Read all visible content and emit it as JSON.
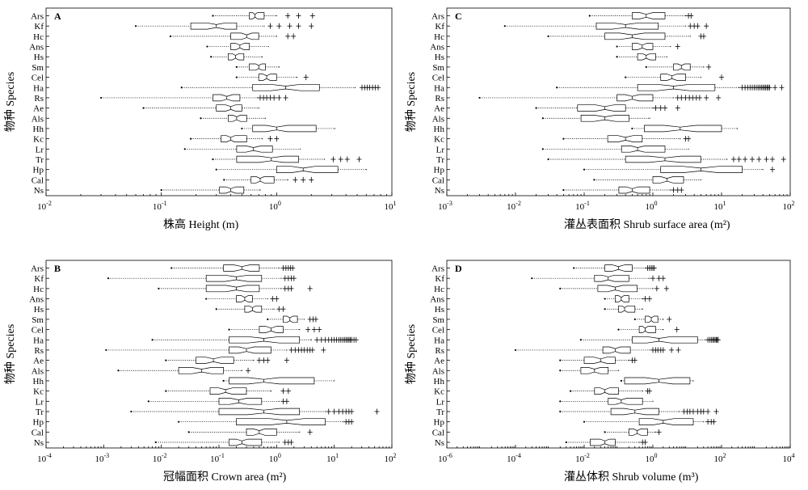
{
  "chart_data": [
    {
      "type": "boxplot",
      "panel": "A",
      "xlabel": "株高 Height (m)",
      "ylabel": "物种 Species",
      "xscale": "log",
      "xlim": [
        0.01,
        10
      ],
      "xticks": [
        {
          "v": 0.01,
          "b": "10",
          "e": "-2"
        },
        {
          "v": 0.1,
          "b": "10",
          "e": "-1"
        },
        {
          "v": 1,
          "b": "10",
          "e": "0"
        },
        {
          "v": 10,
          "b": "10",
          "e": "1"
        }
      ],
      "categories": [
        "Ars",
        "Kf",
        "Hc",
        "Ans",
        "Hs",
        "Sm",
        "Cel",
        "Ha",
        "Rs",
        "Ae",
        "Als",
        "Hh",
        "Kc",
        "Lr",
        "Tr",
        "Hp",
        "Cal",
        "Ns"
      ],
      "boxes": [
        {
          "min": 0.28,
          "q1": 0.58,
          "med": 0.65,
          "q3": 0.78,
          "max": 1.0,
          "out": [
            1.25,
            1.55,
            2.05
          ]
        },
        {
          "min": 0.06,
          "q1": 0.18,
          "med": 0.3,
          "q3": 0.45,
          "max": 0.78,
          "out": [
            0.88,
            1.05,
            1.3,
            1.55,
            2.0
          ]
        },
        {
          "min": 0.12,
          "q1": 0.4,
          "med": 0.55,
          "q3": 0.7,
          "max": 1.0,
          "out": [
            1.25,
            1.4
          ]
        },
        {
          "min": 0.25,
          "q1": 0.4,
          "med": 0.48,
          "q3": 0.58,
          "max": 0.85,
          "out": []
        },
        {
          "min": 0.27,
          "q1": 0.38,
          "med": 0.44,
          "q3": 0.52,
          "max": 0.75,
          "out": []
        },
        {
          "min": 0.45,
          "q1": 0.58,
          "med": 0.7,
          "q3": 0.8,
          "max": 1.05,
          "out": []
        },
        {
          "min": 0.45,
          "q1": 0.7,
          "med": 0.82,
          "q3": 1.0,
          "max": 1.5,
          "out": [
            1.8
          ]
        },
        {
          "min": 0.15,
          "q1": 0.62,
          "med": 1.2,
          "q3": 2.35,
          "max": 4.8,
          "out": [
            5.5,
            5.8,
            6.1,
            6.4,
            6.8,
            7.2,
            7.6
          ]
        },
        {
          "min": 0.03,
          "q1": 0.28,
          "med": 0.37,
          "q3": 0.48,
          "max": 0.68,
          "out": [
            0.72,
            0.77,
            0.82,
            0.88,
            0.95,
            1.05,
            1.2
          ]
        },
        {
          "min": 0.07,
          "q1": 0.3,
          "med": 0.4,
          "q3": 0.5,
          "max": 0.7,
          "out": []
        },
        {
          "min": 0.22,
          "q1": 0.38,
          "med": 0.45,
          "q3": 0.55,
          "max": 0.8,
          "out": []
        },
        {
          "min": 0.5,
          "q1": 0.62,
          "med": 1.0,
          "q3": 2.2,
          "max": 3.2,
          "out": []
        },
        {
          "min": 0.18,
          "q1": 0.33,
          "med": 0.4,
          "q3": 0.55,
          "max": 0.75,
          "out": [
            0.88,
            1.0
          ]
        },
        {
          "min": 0.16,
          "q1": 0.45,
          "med": 0.63,
          "q3": 0.92,
          "max": 1.6,
          "out": []
        },
        {
          "min": 0.28,
          "q1": 0.45,
          "med": 0.9,
          "q3": 1.55,
          "max": 2.6,
          "out": [
            3.1,
            3.6,
            4.1,
            5.2
          ]
        },
        {
          "min": 0.3,
          "q1": 1.0,
          "med": 1.7,
          "q3": 3.4,
          "max": 6.0,
          "out": []
        },
        {
          "min": 0.35,
          "q1": 0.6,
          "med": 0.72,
          "q3": 0.95,
          "max": 1.25,
          "out": [
            1.45,
            1.7,
            2.0
          ]
        },
        {
          "min": 0.1,
          "q1": 0.32,
          "med": 0.4,
          "q3": 0.52,
          "max": 0.72,
          "out": []
        }
      ]
    },
    {
      "type": "boxplot",
      "panel": "B",
      "xlabel": "冠幅面积 Crown area (m²)",
      "ylabel": "物种 Species",
      "xscale": "log",
      "xlim": [
        0.0001,
        100
      ],
      "xticks": [
        {
          "v": 0.0001,
          "b": "10",
          "e": "-4"
        },
        {
          "v": 0.001,
          "b": "10",
          "e": "-3"
        },
        {
          "v": 0.01,
          "b": "10",
          "e": "-2"
        },
        {
          "v": 0.1,
          "b": "10",
          "e": "-1"
        },
        {
          "v": 1,
          "b": "10",
          "e": "0"
        },
        {
          "v": 10,
          "b": "10",
          "e": "1"
        },
        {
          "v": 100,
          "b": "10",
          "e": "2"
        }
      ],
      "categories": [
        "Ars",
        "Kf",
        "Hc",
        "Ans",
        "Hs",
        "Sm",
        "Cel",
        "Ha",
        "Rs",
        "Ae",
        "Als",
        "Hh",
        "Kc",
        "Lr",
        "Tr",
        "Hp",
        "Cal",
        "Ns"
      ],
      "boxes": [
        {
          "min": 0.015,
          "q1": 0.12,
          "med": 0.25,
          "q3": 0.5,
          "max": 1.1,
          "out": [
            1.3,
            1.45,
            1.6,
            1.75,
            1.9
          ]
        },
        {
          "min": 0.0012,
          "q1": 0.06,
          "med": 0.2,
          "q3": 0.55,
          "max": 1.2,
          "out": [
            1.4,
            1.6,
            1.8,
            2.0
          ]
        },
        {
          "min": 0.009,
          "q1": 0.06,
          "med": 0.2,
          "q3": 0.5,
          "max": 1.2,
          "out": [
            1.4,
            1.6,
            1.8,
            3.8
          ]
        },
        {
          "min": 0.06,
          "q1": 0.2,
          "med": 0.28,
          "q3": 0.38,
          "max": 0.7,
          "out": [
            0.85,
            1.0
          ]
        },
        {
          "min": 0.09,
          "q1": 0.28,
          "med": 0.38,
          "q3": 0.55,
          "max": 0.9,
          "out": [
            1.1,
            1.3
          ]
        },
        {
          "min": 0.7,
          "q1": 1.3,
          "med": 1.7,
          "q3": 2.3,
          "max": 3.0,
          "out": [
            3.8,
            4.3,
            4.8
          ]
        },
        {
          "min": 0.15,
          "q1": 0.5,
          "med": 0.8,
          "q3": 1.3,
          "max": 2.5,
          "out": [
            3.5,
            4.5,
            5.5
          ]
        },
        {
          "min": 0.007,
          "q1": 0.15,
          "med": 0.6,
          "q3": 2.5,
          "max": 4.0,
          "out": [
            5,
            6,
            7,
            8,
            9,
            10,
            11,
            12,
            13,
            14,
            15,
            16,
            17,
            18,
            19,
            20,
            22,
            24
          ]
        },
        {
          "min": 0.0011,
          "q1": 0.15,
          "med": 0.3,
          "q3": 0.8,
          "max": 1.5,
          "out": [
            1.8,
            2.1,
            2.4,
            2.7,
            3.0,
            3.4,
            3.8,
            4.2,
            6.5
          ]
        },
        {
          "min": 0.012,
          "q1": 0.04,
          "med": 0.08,
          "q3": 0.18,
          "max": 0.4,
          "out": [
            0.5,
            0.6,
            0.7,
            1.5
          ]
        },
        {
          "min": 0.0018,
          "q1": 0.02,
          "med": 0.05,
          "q3": 0.12,
          "max": 0.25,
          "out": [
            0.32
          ]
        },
        {
          "min": 0.12,
          "q1": 0.15,
          "med": 0.6,
          "q3": 4.5,
          "max": 10,
          "out": []
        },
        {
          "min": 0.012,
          "q1": 0.07,
          "med": 0.13,
          "q3": 0.3,
          "max": 0.8,
          "out": [
            1.3,
            1.6
          ]
        },
        {
          "min": 0.006,
          "q1": 0.1,
          "med": 0.22,
          "q3": 0.55,
          "max": 1.1,
          "out": [
            1.3,
            1.5
          ]
        },
        {
          "min": 0.003,
          "q1": 0.1,
          "med": 0.6,
          "q3": 2.5,
          "max": 7.0,
          "out": [
            8,
            10,
            12,
            14,
            16,
            18,
            20,
            55
          ]
        },
        {
          "min": 0.02,
          "q1": 0.2,
          "med": 1.5,
          "q3": 7.0,
          "max": 14,
          "out": [
            16,
            18,
            20
          ]
        },
        {
          "min": 0.03,
          "q1": 0.3,
          "med": 0.5,
          "q3": 1.0,
          "max": 2.5,
          "out": [
            3.8
          ]
        },
        {
          "min": 0.008,
          "q1": 0.15,
          "med": 0.25,
          "q3": 0.55,
          "max": 1.1,
          "out": [
            1.4,
            1.6,
            1.8
          ]
        }
      ]
    },
    {
      "type": "boxplot",
      "panel": "C",
      "xlabel": "灌丛表面积 Shrub surface area (m²)",
      "ylabel": "物种 Species",
      "xscale": "log",
      "xlim": [
        0.001,
        100
      ],
      "xticks": [
        {
          "v": 0.001,
          "b": "10",
          "e": "-3"
        },
        {
          "v": 0.01,
          "b": "10",
          "e": "-2"
        },
        {
          "v": 0.1,
          "b": "10",
          "e": "-1"
        },
        {
          "v": 1,
          "b": "10",
          "e": "0"
        },
        {
          "v": 10,
          "b": "10",
          "e": "1"
        },
        {
          "v": 100,
          "b": "10",
          "e": "2"
        }
      ],
      "categories": [
        "Ars",
        "Kf",
        "Hc",
        "Ans",
        "Hs",
        "Sm",
        "Cel",
        "Ha",
        "Rs",
        "Ae",
        "Als",
        "Hh",
        "Kc",
        "Lr",
        "Tr",
        "Hp",
        "Cal",
        "Ns"
      ],
      "boxes": [
        {
          "min": 0.12,
          "q1": 0.5,
          "med": 0.8,
          "q3": 1.5,
          "max": 3.0,
          "out": [
            3.3,
            3.6
          ]
        },
        {
          "min": 0.007,
          "q1": 0.15,
          "med": 0.4,
          "q3": 1.2,
          "max": 3.0,
          "out": [
            3.5,
            4.0,
            4.5,
            6.0
          ]
        },
        {
          "min": 0.03,
          "q1": 0.2,
          "med": 0.5,
          "q3": 1.5,
          "max": 3.5,
          "out": [
            5.0,
            5.5
          ]
        },
        {
          "min": 0.3,
          "q1": 0.5,
          "med": 0.7,
          "q3": 1.0,
          "max": 1.8,
          "out": [
            2.3
          ]
        },
        {
          "min": 0.3,
          "q1": 0.6,
          "med": 0.8,
          "q3": 1.1,
          "max": 1.6,
          "out": []
        },
        {
          "min": 0.8,
          "q1": 2.0,
          "med": 2.6,
          "q3": 3.5,
          "max": 5.5,
          "out": [
            6.5
          ]
        },
        {
          "min": 0.4,
          "q1": 1.3,
          "med": 1.9,
          "q3": 3.0,
          "max": 5.0,
          "out": [
            10
          ]
        },
        {
          "min": 0.04,
          "q1": 0.6,
          "med": 2.0,
          "q3": 8.0,
          "max": 18,
          "out": [
            20,
            22,
            24,
            26,
            28,
            30,
            32,
            34,
            36,
            38,
            40,
            42,
            44,
            46,
            48,
            50,
            60,
            75
          ]
        },
        {
          "min": 0.003,
          "q1": 0.3,
          "med": 0.5,
          "q3": 1.0,
          "max": 2.0,
          "out": [
            2.3,
            2.6,
            3.0,
            3.4,
            3.8,
            4.3,
            4.8,
            6.0,
            9.0
          ]
        },
        {
          "min": 0.02,
          "q1": 0.08,
          "med": 0.2,
          "q3": 0.4,
          "max": 1.0,
          "out": [
            1.1,
            1.3,
            1.5,
            2.3
          ]
        },
        {
          "min": 0.025,
          "q1": 0.09,
          "med": 0.2,
          "q3": 0.45,
          "max": 0.9,
          "out": []
        },
        {
          "min": 0.5,
          "q1": 0.75,
          "med": 2.5,
          "q3": 10,
          "max": 17,
          "out": []
        },
        {
          "min": 0.05,
          "q1": 0.22,
          "med": 0.4,
          "q3": 0.7,
          "max": 2.5,
          "out": [
            3.0,
            3.3
          ]
        },
        {
          "min": 0.025,
          "q1": 0.35,
          "med": 0.6,
          "q3": 1.5,
          "max": 3.3,
          "out": []
        },
        {
          "min": 0.03,
          "q1": 0.4,
          "med": 1.5,
          "q3": 5.0,
          "max": 12,
          "out": [
            15,
            18,
            22,
            28,
            35,
            45,
            55,
            80
          ]
        },
        {
          "min": 0.1,
          "q1": 1.3,
          "med": 5.0,
          "q3": 20,
          "max": 40,
          "out": [
            55
          ]
        },
        {
          "min": 0.14,
          "q1": 1.0,
          "med": 1.6,
          "q3": 2.8,
          "max": 5.0,
          "out": []
        },
        {
          "min": 0.05,
          "q1": 0.32,
          "med": 0.5,
          "q3": 0.9,
          "max": 1.8,
          "out": [
            2.0,
            2.3,
            2.6
          ]
        }
      ]
    },
    {
      "type": "boxplot",
      "panel": "D",
      "xlabel": "灌丛体积 Shrub volume (m³)",
      "ylabel": "物种 Species",
      "xscale": "log",
      "xlim": [
        1e-06,
        10000
      ],
      "xticks": [
        {
          "v": 1e-06,
          "b": "10",
          "e": "-6"
        },
        {
          "v": 0.0001,
          "b": "10",
          "e": "-4"
        },
        {
          "v": 0.01,
          "b": "10",
          "e": "-2"
        },
        {
          "v": 1,
          "b": "10",
          "e": "0"
        },
        {
          "v": 100,
          "b": "10",
          "e": "2"
        },
        {
          "v": 10000,
          "b": "10",
          "e": "4"
        }
      ],
      "categories": [
        "Ars",
        "Kf",
        "Hc",
        "Ans",
        "Hs",
        "Sm",
        "Cel",
        "Ha",
        "Rs",
        "Ae",
        "Als",
        "Hh",
        "Kc",
        "Lr",
        "Tr",
        "Hp",
        "Cal",
        "Ns"
      ],
      "boxes": [
        {
          "min": 0.005,
          "q1": 0.04,
          "med": 0.1,
          "q3": 0.25,
          "max": 0.6,
          "out": [
            0.7,
            0.8,
            0.9,
            1.0,
            1.1
          ]
        },
        {
          "min": 0.0003,
          "q1": 0.02,
          "med": 0.05,
          "q3": 0.2,
          "max": 0.8,
          "out": [
            1.0,
            1.5,
            2.0
          ]
        },
        {
          "min": 0.002,
          "q1": 0.025,
          "med": 0.08,
          "q3": 0.35,
          "max": 1.0,
          "out": [
            1.3,
            2.5
          ]
        },
        {
          "min": 0.04,
          "q1": 0.08,
          "med": 0.12,
          "q3": 0.2,
          "max": 0.5,
          "out": [
            0.6,
            0.8
          ]
        },
        {
          "min": 0.04,
          "q1": 0.1,
          "med": 0.15,
          "q3": 0.3,
          "max": 0.5,
          "out": []
        },
        {
          "min": 0.3,
          "q1": 0.6,
          "med": 0.9,
          "q3": 1.4,
          "max": 2.0,
          "out": [
            3.0
          ]
        },
        {
          "min": 0.1,
          "q1": 0.4,
          "med": 0.6,
          "q3": 1.2,
          "max": 2.0,
          "out": [
            5.0
          ]
        },
        {
          "min": 0.008,
          "q1": 0.25,
          "med": 1.5,
          "q3": 20,
          "max": 35,
          "out": [
            40,
            45,
            50,
            55,
            60,
            65,
            70,
            75,
            80
          ]
        },
        {
          "min": 0.0001,
          "q1": 0.035,
          "med": 0.08,
          "q3": 0.22,
          "max": 0.8,
          "out": [
            1.0,
            1.2,
            1.4,
            1.7,
            2.0,
            3.5,
            5.5
          ]
        },
        {
          "min": 0.002,
          "q1": 0.01,
          "med": 0.03,
          "q3": 0.08,
          "max": 0.2,
          "out": [
            0.25,
            0.3
          ]
        },
        {
          "min": 0.002,
          "q1": 0.008,
          "med": 0.02,
          "q3": 0.05,
          "max": 0.1,
          "out": []
        },
        {
          "min": 0.12,
          "q1": 0.15,
          "med": 1.5,
          "q3": 12,
          "max": 15,
          "out": []
        },
        {
          "min": 0.004,
          "q1": 0.02,
          "med": 0.04,
          "q3": 0.1,
          "max": 0.5,
          "out": [
            0.7,
            0.8
          ]
        },
        {
          "min": 0.002,
          "q1": 0.05,
          "med": 0.12,
          "q3": 0.5,
          "max": 1.0,
          "out": []
        },
        {
          "min": 0.002,
          "q1": 0.06,
          "med": 0.3,
          "q3": 1.5,
          "max": 6.0,
          "out": [
            8,
            10,
            12,
            15,
            20,
            25,
            30,
            40,
            70
          ]
        },
        {
          "min": 0.01,
          "q1": 0.4,
          "med": 2.0,
          "q3": 15,
          "max": 30,
          "out": [
            40,
            50,
            60
          ]
        },
        {
          "min": 0.04,
          "q1": 0.2,
          "med": 0.35,
          "q3": 0.7,
          "max": 1.2,
          "out": [
            1.5
          ]
        },
        {
          "min": 0.003,
          "q1": 0.015,
          "med": 0.04,
          "q3": 0.08,
          "max": 0.4,
          "out": [
            0.5,
            0.6
          ]
        }
      ]
    }
  ]
}
